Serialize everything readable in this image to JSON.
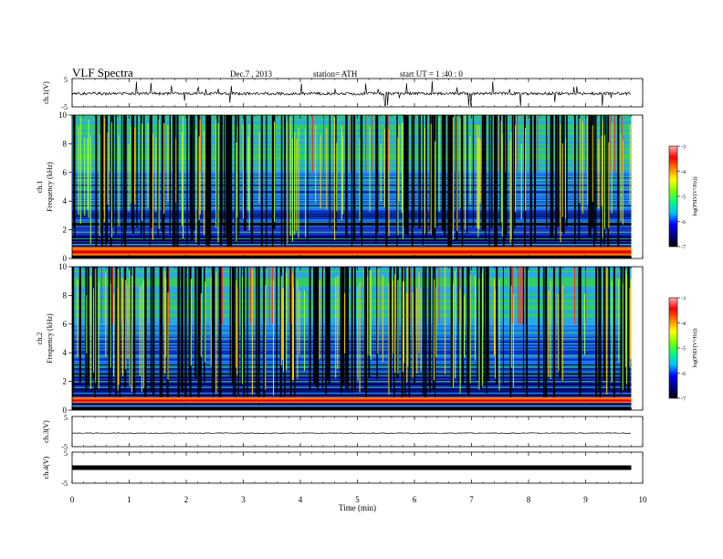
{
  "header": {
    "title": "VLF  Spectra",
    "date": "Dec.7  , 2013",
    "station": "station= ATH",
    "start": "start  UT  =   1  :40 : 0"
  },
  "chart_data": [
    {
      "type": "line",
      "panel": "ch1-waveform",
      "ylabel": "ch.1(V)",
      "xlim": [
        0,
        10
      ],
      "ylim": [
        -5,
        5
      ],
      "ytick_labels": [
        "5",
        "-5"
      ],
      "baseline_value": -0.3,
      "data_end_min": 9.8
    },
    {
      "type": "heatmap",
      "panel": "ch1-spectrogram",
      "ylabel_channel": "ch.1",
      "ylabel": "Frequency  (kHz)",
      "xlim": [
        0,
        10
      ],
      "ylim": [
        0,
        10
      ],
      "ytick_labels": [
        "0",
        "2",
        "4",
        "6",
        "8",
        "10"
      ],
      "colorbar": {
        "label": "log(PSD/(V²/Hz))",
        "range": [
          -7,
          -3
        ],
        "tick_labels": [
          "-3",
          "-4",
          "-5",
          "-6",
          "-7"
        ],
        "colors": [
          "#000000",
          "#00008b",
          "#0000ff",
          "#00bfff",
          "#00ff7f",
          "#7fff00",
          "#ffff00",
          "#ff7f00",
          "#ff0000",
          "#ffb0b0"
        ]
      },
      "data_end_min": 9.8,
      "low_band_khz": [
        0.2,
        0.8
      ]
    },
    {
      "type": "heatmap",
      "panel": "ch2-spectrogram",
      "ylabel_channel": "ch.2",
      "ylabel": "Frequency  (kHz)",
      "xlim": [
        0,
        10
      ],
      "ylim": [
        0,
        10
      ],
      "ytick_labels": [
        "0",
        "2",
        "4",
        "6",
        "8",
        "10"
      ],
      "colorbar": {
        "label": "log(PSD/(V²/Hz))",
        "range": [
          -7,
          -3
        ],
        "tick_labels": [
          "-3",
          "-4",
          "-5",
          "-6",
          "-7"
        ],
        "colors": [
          "#000000",
          "#00008b",
          "#0000ff",
          "#00bfff",
          "#00ff7f",
          "#7fff00",
          "#ffff00",
          "#ff7f00",
          "#ff0000",
          "#ffb0b0"
        ]
      },
      "data_end_min": 9.8,
      "low_band_khz": [
        0.5,
        0.9
      ]
    },
    {
      "type": "line",
      "panel": "ch3-waveform",
      "ylabel": "ch.3(V)",
      "xlim": [
        0,
        10
      ],
      "ylim": [
        -5,
        5
      ],
      "ytick_labels": [
        "5",
        "-5"
      ],
      "baseline_value": -0.5,
      "data_end_min": 9.8
    },
    {
      "type": "line",
      "panel": "ch4-waveform",
      "ylabel": "ch.4(V)",
      "xlim": [
        0,
        10
      ],
      "ylim": [
        -5,
        5
      ],
      "ytick_labels": [
        "5",
        "-5"
      ],
      "baseline_value": 0,
      "data_end_min": 9.8
    }
  ],
  "x_axis": {
    "label": "Time  (min)",
    "range": [
      0,
      10
    ],
    "tick_labels": [
      "0",
      "1",
      "2",
      "3",
      "4",
      "5",
      "6",
      "7",
      "8",
      "9",
      "10"
    ]
  }
}
